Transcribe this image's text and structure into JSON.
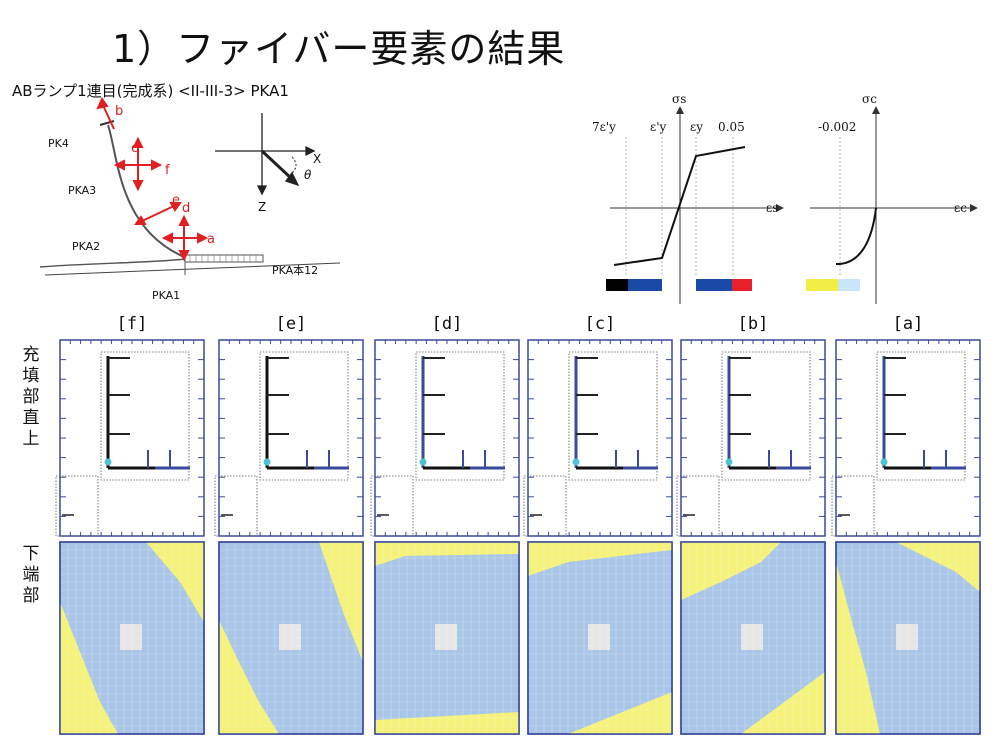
{
  "title": "1）ファイバー要素の結果",
  "subtitle": "ABランプ1連目(完成系) <II-III-3> PKA1",
  "schematic": {
    "pier_labels": [
      "PK4",
      "PKA3",
      "PKA2",
      "PKA1"
    ],
    "deck_label": "PKA本12",
    "directions": [
      "a",
      "b",
      "c",
      "d",
      "e",
      "f"
    ],
    "axis_x": "X",
    "axis_z": "Z",
    "angle": "θ"
  },
  "steel_law": {
    "y_axis": "σs",
    "x_axis": "εs",
    "ticks": [
      "7ε'y",
      "ε'y",
      "εy",
      "0.05"
    ]
  },
  "concrete_law": {
    "y_axis": "σc",
    "x_axis": "εc",
    "ticks": [
      "-0.002"
    ]
  },
  "legend_colors": {
    "steel": [
      "#000000",
      "#1a4aa8",
      "#1a4aa8",
      "#e8202a"
    ],
    "concrete": [
      "#f2ee44",
      "#c8e6f7"
    ]
  },
  "panel_titles": [
    "[f]",
    "[e]",
    "[d]",
    "[c]",
    "[b]",
    "[a]"
  ],
  "row_labels": {
    "upper": "充填部直上",
    "lower": "下端部"
  },
  "colors": {
    "frame": "#3a4a9c",
    "concrete_fill": "#a9c6e8",
    "yield_fill": "#f4f27a",
    "crush_fill": "#e6e6e6"
  }
}
